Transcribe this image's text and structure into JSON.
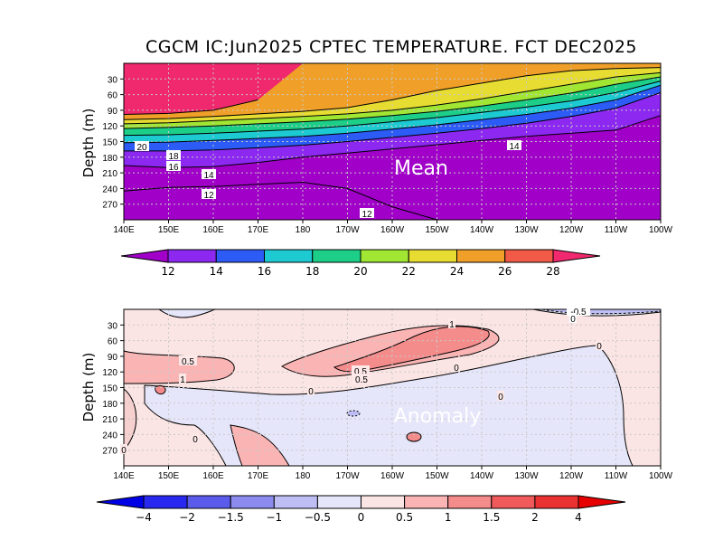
{
  "title": "CGCM IC:Jun2025 CPTEC TEMPERATURE. FCT DEC2025",
  "chart_data": [
    {
      "type": "heatmap",
      "name": "Mean",
      "watermark": "Mean",
      "ylabel": "Depth (m)",
      "x_ticks": [
        "140E",
        "150E",
        "160E",
        "170E",
        "180",
        "170W",
        "160W",
        "150W",
        "140W",
        "130W",
        "120W",
        "110W",
        "100W"
      ],
      "y_ticks": [
        "30",
        "60",
        "90",
        "120",
        "150",
        "180",
        "210",
        "240",
        "270"
      ],
      "contour_labels": [
        "20",
        "18",
        "16",
        "14",
        "12",
        "12",
        "14"
      ],
      "colorbar": {
        "levels": [
          "12",
          "14",
          "16",
          "18",
          "20",
          "22",
          "24",
          "26",
          "28"
        ],
        "colors": [
          "#a000c8",
          "#8c28f0",
          "#2c5bf6",
          "#1ecad2",
          "#1dce88",
          "#a0e632",
          "#e6dc32",
          "#f0a028",
          "#f05a46",
          "#f0286e"
        ]
      },
      "isotherms_depth_m": {
        "x_lon": [
          140,
          150,
          160,
          170,
          180,
          190,
          200,
          210,
          220,
          230,
          240,
          250,
          260
        ],
        "t28": [
          98,
          96,
          90,
          70,
          0,
          0,
          0,
          0,
          0,
          0,
          0,
          0,
          0
        ],
        "t26": [
          108,
          106,
          102,
          97,
          92,
          85,
          70,
          52,
          38,
          24,
          14,
          10,
          8
        ],
        "t24": [
          116,
          114,
          110,
          106,
          102,
          97,
          90,
          80,
          68,
          54,
          40,
          26,
          18
        ],
        "t22": [
          125,
          123,
          120,
          116,
          112,
          107,
          100,
          92,
          82,
          70,
          57,
          40,
          26
        ],
        "t20": [
          138,
          137,
          134,
          130,
          126,
          120,
          112,
          104,
          94,
          84,
          72,
          56,
          34
        ],
        "t18": [
          152,
          151,
          148,
          144,
          140,
          134,
          126,
          118,
          108,
          98,
          86,
          70,
          42
        ],
        "t16": [
          168,
          168,
          166,
          162,
          157,
          150,
          142,
          134,
          125,
          115,
          102,
          86,
          56
        ],
        "t14": [
          196,
          200,
          198,
          190,
          180,
          172,
          164,
          156,
          148,
          140,
          134,
          128,
          100
        ],
        "t12": [
          245,
          238,
          236,
          232,
          228,
          240,
          275,
          300,
          300,
          300,
          300,
          300,
          300
        ]
      }
    },
    {
      "type": "heatmap",
      "name": "Anomaly",
      "watermark": "Anomaly",
      "ylabel": "Depth (m)",
      "x_ticks": [
        "140E",
        "150E",
        "160E",
        "170E",
        "180",
        "170W",
        "160W",
        "150W",
        "140W",
        "130W",
        "120W",
        "110W",
        "100W"
      ],
      "y_ticks": [
        "30",
        "60",
        "90",
        "120",
        "150",
        "180",
        "210",
        "240",
        "270"
      ],
      "contour_labels": [
        "-0.5",
        "0",
        "1",
        "0.5",
        "0.5",
        "1",
        "0.5",
        "0",
        "0",
        "0",
        "0",
        "0",
        "0"
      ],
      "colorbar": {
        "levels": [
          "−4",
          "−2",
          "−1.5",
          "−1",
          "−0.5",
          "0",
          "0.5",
          "1",
          "1.5",
          "2",
          "4"
        ],
        "colors": [
          "#0000e6",
          "#2828f0",
          "#5a5aeb",
          "#8c8cf0",
          "#bebef5",
          "#e6e6fa",
          "#fbe4e4",
          "#fab4b4",
          "#f58c8c",
          "#f05a5a",
          "#eb3232",
          "#e60000"
        ]
      }
    }
  ]
}
